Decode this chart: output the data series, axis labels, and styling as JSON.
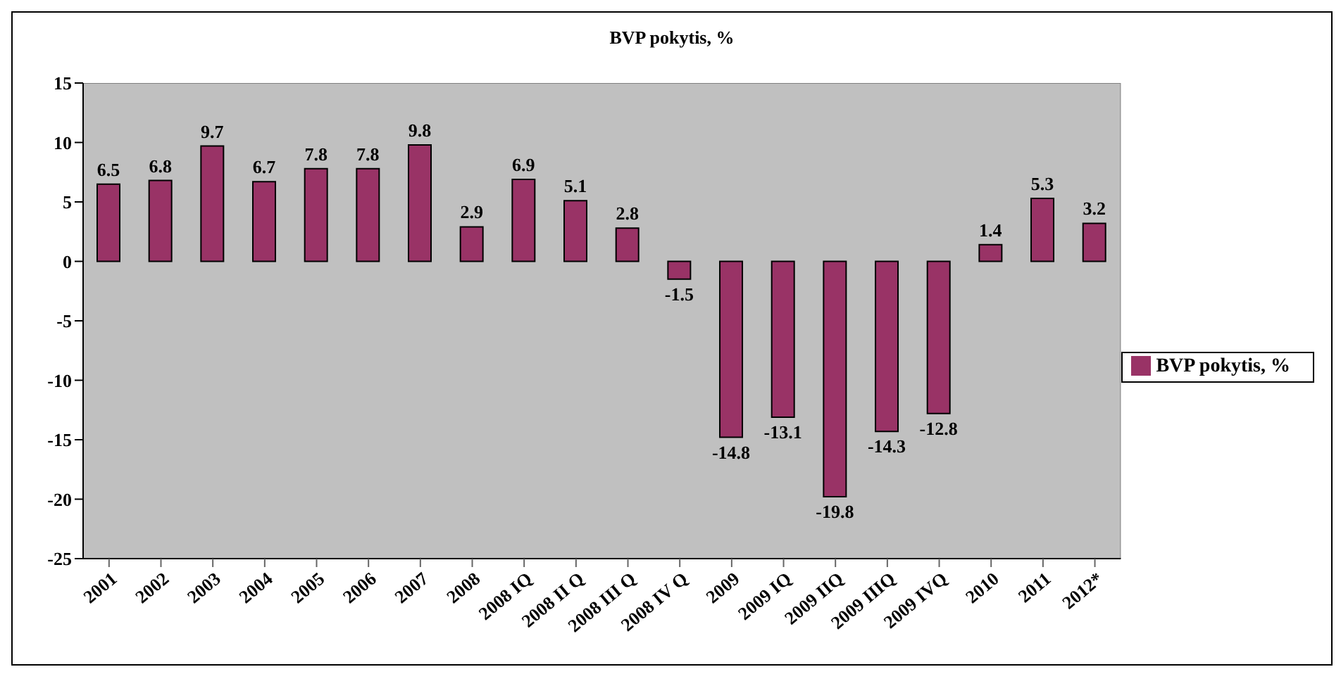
{
  "chart_data": {
    "type": "bar",
    "title": "BVP pokytis, %",
    "categories": [
      "2001",
      "2002",
      "2003",
      "2004",
      "2005",
      "2006",
      "2007",
      "2008",
      "2008 IQ",
      "2008 II Q",
      "2008 III Q",
      "2008 IV Q",
      "2009",
      "2009 IQ",
      "2009 IIQ",
      "2009 IIIQ",
      "2009 IVQ",
      "2010",
      "2011",
      "2012*"
    ],
    "series": [
      {
        "name": "BVP pokytis, %",
        "color": "#993366",
        "values": [
          6.5,
          6.8,
          9.7,
          6.7,
          7.8,
          7.8,
          9.8,
          2.9,
          6.9,
          5.1,
          2.8,
          -1.5,
          -14.8,
          -13.1,
          -19.8,
          -14.3,
          -12.8,
          1.4,
          5.3,
          3.2
        ]
      }
    ],
    "ylim": [
      -25,
      15
    ],
    "yticks": [
      -25,
      -20,
      -15,
      -10,
      -5,
      0,
      5,
      10,
      15
    ],
    "grid": false,
    "legend": "right",
    "data_labels": true
  }
}
